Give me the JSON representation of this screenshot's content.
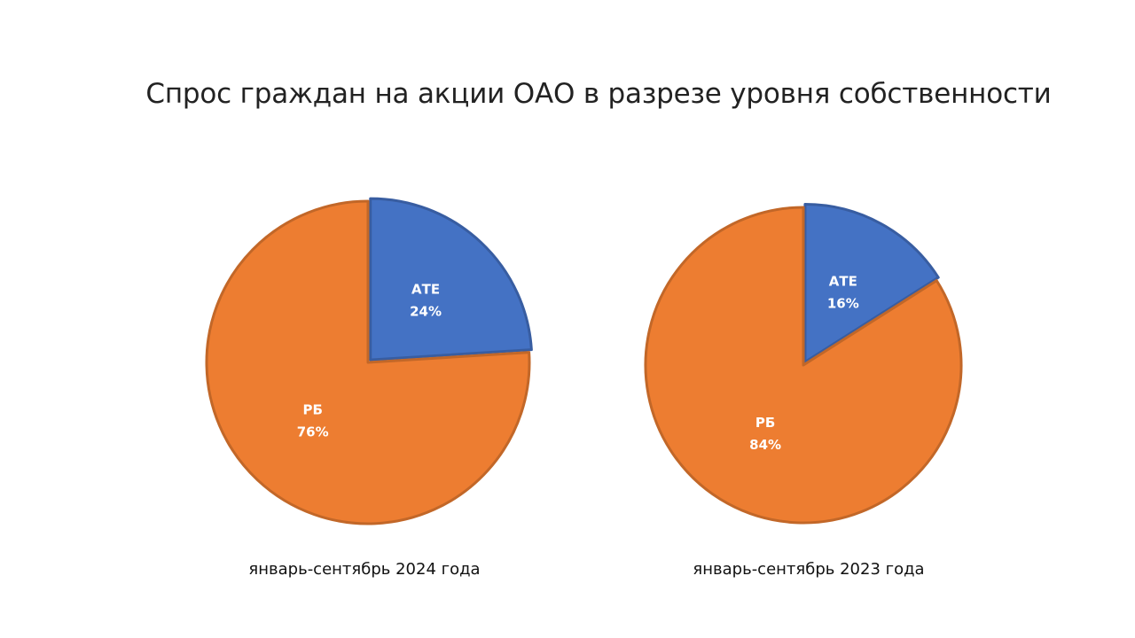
{
  "chart_data": [
    {
      "type": "pie",
      "title": "Спрос граждан на акции ОАО в разрезе уровня собственности",
      "caption": "январь-сентябрь 2024 года",
      "slices": [
        {
          "name": "АТЕ",
          "value": 24,
          "label": "24%",
          "color": "#4472C4"
        },
        {
          "name": "РБ",
          "value": 76,
          "label": "76%",
          "color": "#ED7D31"
        }
      ],
      "start_angle_deg": 0,
      "exploded": "АТЕ"
    },
    {
      "type": "pie",
      "title": "Спрос граждан на акции ОАО в разрезе уровня собственности",
      "caption": "январь-сентябрь 2023 года",
      "slices": [
        {
          "name": "АТЕ",
          "value": 16,
          "label": "16%",
          "color": "#4472C4"
        },
        {
          "name": "РБ",
          "value": 84,
          "label": "84%",
          "color": "#ED7D31"
        }
      ],
      "start_angle_deg": 0,
      "exploded": "АТЕ"
    }
  ],
  "header": {
    "title": "Спрос граждан на акции ОАО в разрезе уровня собственности"
  }
}
